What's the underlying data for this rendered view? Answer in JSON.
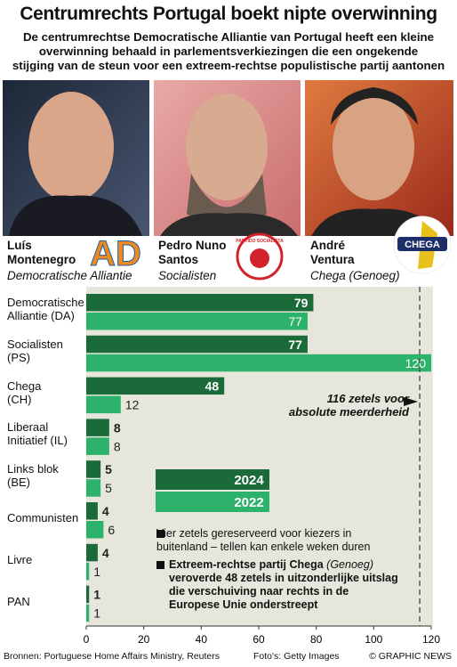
{
  "header": {
    "title": "Centrumrechts Portugal boekt nipte overwinning",
    "subtitle": "De centrumrechtse Democratische Alliantie van Portugal heeft een kleine\noverwinning behaald in parlementsverkiezingen die een ongekende\nstijging van de steun voor een extreem-rechtse populistische partij aantonen"
  },
  "people": [
    {
      "name": "Luís\nMontenegro",
      "party": "Democratische Alliantie",
      "logo": "AD"
    },
    {
      "name": "Pedro Nuno\nSantos",
      "party": "Socialisten",
      "logo": "PARTIDO SOCIALISTA"
    },
    {
      "name": "André\nVentura",
      "party": "Chega (Genoeg)",
      "logo": "CHEGA"
    }
  ],
  "chart_data": {
    "type": "bar",
    "orientation": "horizontal",
    "categories": [
      "Democratische\nAlliantie (DA)",
      "Socialisten\n(PS)",
      "Chega\n(CH)",
      "Liberaal\nInitiatief (IL)",
      "Links blok\n(BE)",
      "Communisten",
      "Livre",
      "PAN"
    ],
    "series": [
      {
        "name": "2024",
        "color": "#1b6b3a",
        "values": [
          79,
          77,
          48,
          8,
          5,
          4,
          4,
          1
        ]
      },
      {
        "name": "2022",
        "color": "#2cb26a",
        "values": [
          77,
          120,
          12,
          8,
          5,
          6,
          1,
          1
        ]
      }
    ],
    "xlim": [
      0,
      120
    ],
    "xticks": [
      0,
      20,
      40,
      60,
      80,
      100,
      120
    ],
    "majority": {
      "value": 116,
      "label": "116 zetels voor\nabsolute meerderheid"
    }
  },
  "notes": [
    {
      "text": "Vier zetels gereserveerd voor kiezers in\nbuitenland – tellen kan enkele weken duren"
    },
    {
      "bold1": "Extreem-rechtse partij Chega",
      "italic": "(Genoeg)",
      "bold2": "veroverde 48 zetels in uitzonderlijke uitslag\ndie verschuiving naar rechts in de\nEuropese Unie onderstreept"
    }
  ],
  "footer": {
    "sources": "Bronnen: Portuguese Home Affairs Ministry, Reuters",
    "photos": "Foto's: Getty Images",
    "credit": "© GRAPHIC NEWS"
  }
}
